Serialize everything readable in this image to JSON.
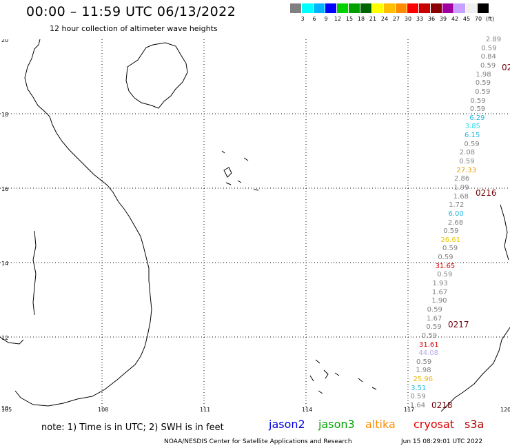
{
  "header": {
    "title": "00:00 – 11:59 UTC 06/13/2022",
    "subtitle": "12 hour collection of altimeter wave heights"
  },
  "color_scale": {
    "colors": [
      "#808080",
      "#00ffff",
      "#00b4ff",
      "#0000ff",
      "#00d200",
      "#00a000",
      "#006400",
      "#ffff00",
      "#ffbe00",
      "#ff8c00",
      "#ff0000",
      "#c80000",
      "#8b0000",
      "#a000a0",
      "#c8a0ff",
      "#f0f0f0",
      "#000000"
    ],
    "labels": [
      "3",
      "6",
      "9",
      "12",
      "15",
      "18",
      "21",
      "24",
      "27",
      "30",
      "33",
      "36",
      "39",
      "42",
      "45",
      "70"
    ],
    "unit": "(ft)"
  },
  "axes": {
    "lat_labels": [
      "20",
      "18",
      "16",
      "14",
      "12",
      "10"
    ],
    "lon_labels": [
      "105",
      "108",
      "111",
      "114",
      "117",
      "120"
    ]
  },
  "observations": [
    {
      "text": "2.89",
      "color": "#808080"
    },
    {
      "text": "0.59",
      "color": "#808080"
    },
    {
      "text": "0.84",
      "color": "#808080"
    },
    {
      "text": "0.59",
      "color": "#808080"
    },
    {
      "text": "1.98",
      "color": "#808080"
    },
    {
      "text": "0.59",
      "color": "#808080"
    },
    {
      "text": "0.59",
      "color": "#808080"
    },
    {
      "text": "0.59",
      "color": "#808080"
    },
    {
      "text": "0.59",
      "color": "#808080"
    },
    {
      "text": "6.29",
      "color": "#1fb6e0"
    },
    {
      "text": "3.85",
      "color": "#30d8e8"
    },
    {
      "text": "6.15",
      "color": "#1fb6e0"
    },
    {
      "text": "0.59",
      "color": "#808080"
    },
    {
      "text": "2.08",
      "color": "#808080"
    },
    {
      "text": "0.59",
      "color": "#808080"
    },
    {
      "text": "27.33",
      "color": "#e89a00"
    },
    {
      "text": "2.86",
      "color": "#808080"
    },
    {
      "text": "1.99",
      "color": "#808080"
    },
    {
      "text": "1.68",
      "color": "#808080"
    },
    {
      "text": "1.72",
      "color": "#808080"
    },
    {
      "text": "6.00",
      "color": "#1fb6e0"
    },
    {
      "text": "2.68",
      "color": "#808080"
    },
    {
      "text": "0.59",
      "color": "#808080"
    },
    {
      "text": "26.61",
      "color": "#e8c800"
    },
    {
      "text": "0.59",
      "color": "#808080"
    },
    {
      "text": "0.59",
      "color": "#808080"
    },
    {
      "text": "31.65",
      "color": "#e00000"
    },
    {
      "text": "0.59",
      "color": "#808080"
    },
    {
      "text": "1.93",
      "color": "#808080"
    },
    {
      "text": "1.67",
      "color": "#808080"
    },
    {
      "text": "1.90",
      "color": "#808080"
    },
    {
      "text": "0.59",
      "color": "#808080"
    },
    {
      "text": "1.67",
      "color": "#808080"
    },
    {
      "text": "0.59",
      "color": "#808080"
    },
    {
      "text": "0.59",
      "color": "#808080"
    },
    {
      "text": "31.61",
      "color": "#e00000"
    },
    {
      "text": "44.08",
      "color": "#b8a8e8"
    },
    {
      "text": "0.59",
      "color": "#808080"
    },
    {
      "text": "1.98",
      "color": "#808080"
    },
    {
      "text": "25.96",
      "color": "#e8b400"
    },
    {
      "text": "3.51",
      "color": "#1fb6e0"
    },
    {
      "text": "0.59",
      "color": "#808080"
    },
    {
      "text": "1.64",
      "color": "#808080"
    }
  ],
  "time_tags": [
    "02",
    "0216",
    "0217",
    "0218"
  ],
  "note": "note: 1) Time is in UTC; 2) SWH is in feet",
  "satellites": [
    {
      "name": "jason2",
      "color": "#0000e0"
    },
    {
      "name": "jason3",
      "color": "#00a000"
    },
    {
      "name": "altika",
      "color": "#ff8c00"
    },
    {
      "name": "cryosat",
      "color": "#e00000"
    },
    {
      "name": "s3a",
      "color": "#b00000"
    }
  ],
  "footer": {
    "credit": "NOAA/NESDIS Center for Satellite Applications and Research",
    "timestamp": "Jun 15 08:29:01 UTC 2022"
  }
}
